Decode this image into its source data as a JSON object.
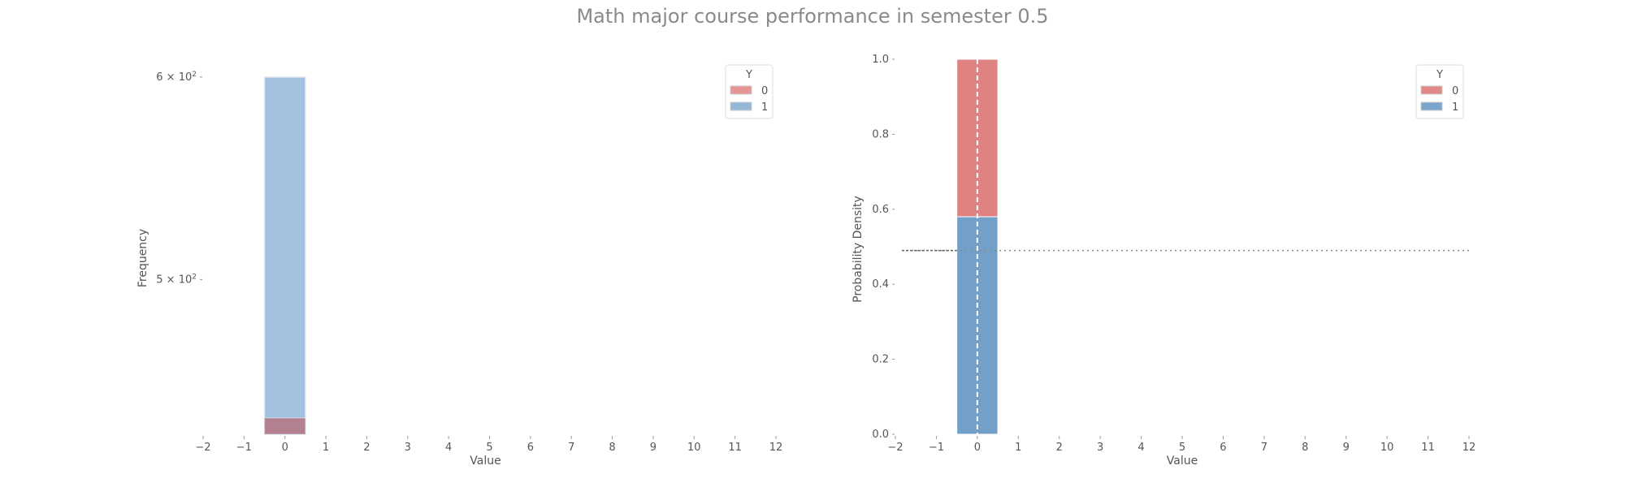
{
  "title": "Math major course performance in semester 0.5",
  "chart_data": [
    {
      "type": "bar",
      "panel": "left",
      "xlabel": "Value",
      "ylabel": "Frequency",
      "ylog": true,
      "xlim": [
        -2,
        12
      ],
      "xticks": [
        -2,
        -1,
        0,
        1,
        2,
        3,
        4,
        5,
        6,
        7,
        8,
        9,
        10,
        11,
        12
      ],
      "yticks": [
        {
          "value": 500,
          "label": "5 × 10²"
        },
        {
          "value": 600,
          "label": "6 × 10²"
        }
      ],
      "legend": {
        "title": "Y",
        "placement": "top-right",
        "entries": [
          "0",
          "1"
        ]
      },
      "bars": {
        "center": 0,
        "width": 1
      },
      "series": [
        {
          "name": "0",
          "value": 435,
          "color": "#e07b7b"
        },
        {
          "name": "1",
          "value": 600,
          "color": "#7aa6d0"
        }
      ],
      "stacked_overlap": true
    },
    {
      "type": "bar",
      "panel": "right",
      "xlabel": "Value",
      "ylabel": "Probability Density",
      "xlim": [
        -2,
        12
      ],
      "ylim": [
        0,
        1
      ],
      "xticks": [
        -2,
        -1,
        0,
        1,
        2,
        3,
        4,
        5,
        6,
        7,
        8,
        9,
        10,
        11,
        12
      ],
      "yticks": [
        {
          "value": 0.0,
          "label": "0.0"
        },
        {
          "value": 0.2,
          "label": "0.2"
        },
        {
          "value": 0.4,
          "label": "0.4"
        },
        {
          "value": 0.6,
          "label": "0.6"
        },
        {
          "value": 0.8,
          "label": "0.8"
        },
        {
          "value": 1.0,
          "label": "1.0"
        }
      ],
      "legend": {
        "title": "Y",
        "placement": "top-right",
        "entries": [
          "0",
          "1"
        ]
      },
      "bars": {
        "center": 0,
        "width": 1
      },
      "series": [
        {
          "name": "1",
          "value": 0.58,
          "color": "#5a8fc0"
        },
        {
          "name": "0",
          "value": 0.42,
          "color": "#d96c6c"
        }
      ],
      "stacked": true,
      "hline": 0.49,
      "vline": 0
    }
  ]
}
